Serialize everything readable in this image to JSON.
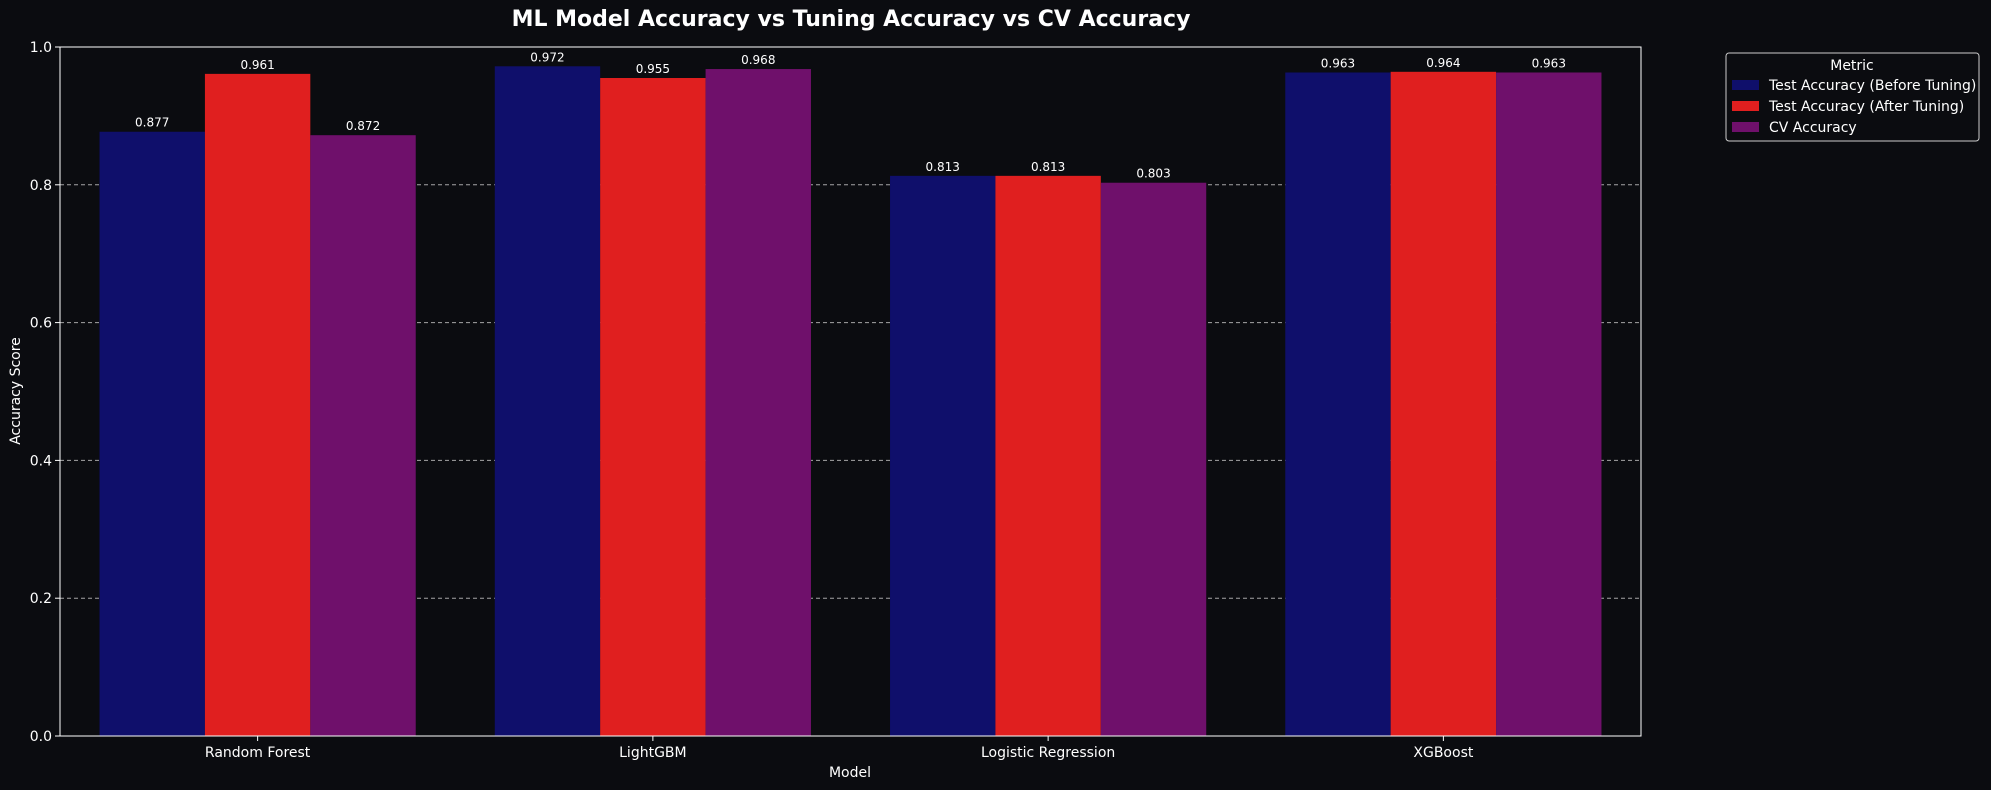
{
  "chart_data": {
    "type": "bar",
    "title": "ML Model Accuracy vs Tuning Accuracy vs CV Accuracy",
    "xlabel": "Model",
    "ylabel": "Accuracy Score",
    "categories": [
      "Random Forest",
      "LightGBM",
      "Logistic Regression",
      "XGBoost"
    ],
    "series": [
      {
        "name": "Test Accuracy (Before Tuning)",
        "color": "#0f0f6b",
        "values": [
          0.877,
          0.972,
          0.813,
          0.963
        ]
      },
      {
        "name": "Test Accuracy (After Tuning)",
        "color": "#e01f1f",
        "values": [
          0.961,
          0.955,
          0.813,
          0.964
        ]
      },
      {
        "name": "CV Accuracy",
        "color": "#6f106b",
        "values": [
          0.872,
          0.968,
          0.803,
          0.963
        ]
      }
    ],
    "ylim": [
      0.0,
      1.0
    ],
    "yticks": [
      "0.0",
      "0.2",
      "0.4",
      "0.6",
      "0.8",
      "1.0"
    ],
    "legend": {
      "title": "Metric",
      "placement": "outside-top-right"
    },
    "grid": {
      "y": true,
      "style": "dashed"
    },
    "colors": {
      "background": "#0b0c10",
      "text": "#ffffff",
      "grid": "#cccccc"
    }
  }
}
